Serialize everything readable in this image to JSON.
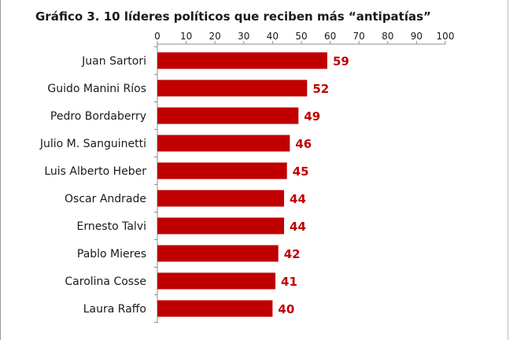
{
  "chart_data": {
    "type": "bar",
    "orientation": "horizontal",
    "title": "Gráfico 3. 10 líderes políticos que reciben más “antipatías”",
    "categories": [
      "Juan Sartori",
      "Guido Manini Ríos",
      "Pedro Bordaberry",
      "Julio M. Sanguinetti",
      "Luis Alberto Heber",
      "Oscar Andrade",
      "Ernesto Talvi",
      "Pablo Mieres",
      "Carolina Cosse",
      "Laura Raffo"
    ],
    "values": [
      59,
      52,
      49,
      46,
      45,
      44,
      44,
      42,
      41,
      40
    ],
    "xlim": [
      0,
      100
    ],
    "xticks": [
      0,
      10,
      20,
      30,
      40,
      50,
      60,
      70,
      80,
      90,
      100
    ],
    "axis_position": "top",
    "grid": false,
    "colors": {
      "bar": "#c00000",
      "data_label": "#c00000"
    }
  }
}
